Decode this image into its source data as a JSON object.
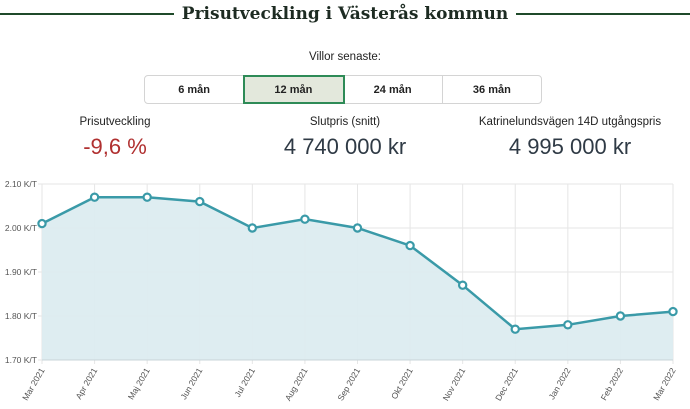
{
  "header": {
    "title": "Prisutveckling i Västerås kommun"
  },
  "filter": {
    "label": "Villor senaste:",
    "options": [
      "6 mån",
      "12 mån",
      "24 mån",
      "36 mån"
    ],
    "selected": "12 mån"
  },
  "stats": [
    {
      "label": "Prisutveckling",
      "value": "-9,6 %",
      "color": "#b03030"
    },
    {
      "label": "Slutpris (snitt)",
      "value": "4 740 000 kr"
    },
    {
      "label": "Katrinelundsvägen 14D utgångspris",
      "value": "4 995 000 kr"
    }
  ],
  "chart_data": {
    "type": "area",
    "categories": [
      "Mar 2021",
      "Apr 2021",
      "Maj 2021",
      "Jun 2021",
      "Jul 2021",
      "Aug 2021",
      "Sep 2021",
      "Okt 2021",
      "Nov 2021",
      "Dec 2021",
      "Jan 2022",
      "Feb 2022",
      "Mar 2022"
    ],
    "values": [
      2.01,
      2.07,
      2.07,
      2.06,
      2.0,
      2.02,
      2.0,
      1.96,
      1.87,
      1.77,
      1.78,
      1.8,
      1.81
    ],
    "yticks": [
      "2.10 K/T",
      "2.00 K/T",
      "1.90 K/T",
      "1.80 K/T",
      "1.70 K/T"
    ],
    "ylim": [
      1.7,
      2.1
    ],
    "grid": true,
    "line_color": "#3a9aa8",
    "fill_color": "#dcecf0"
  }
}
